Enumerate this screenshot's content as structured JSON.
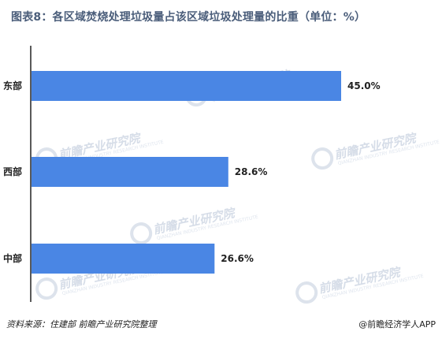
{
  "title": "图表8：各区域焚烧处理垃圾量占该区域垃圾处理量的比重（单位：%）",
  "source": "资料来源：住建部  前瞻产业研究院整理",
  "credit": "@前瞻经济学人APP",
  "watermark": {
    "text": "前瞻产业研究院",
    "subtext": "QIANZHAN INDUSTRY RESEARCH INSTITUTE"
  },
  "colors": {
    "bar": "#4a86e4",
    "axis": "#222222",
    "title": "#4a5d7a"
  },
  "chart_data": {
    "type": "bar",
    "orientation": "horizontal",
    "title": "图表8：各区域焚烧处理垃圾量占该区域垃圾处理量的比重（单位：%）",
    "categories": [
      "东部",
      "西部",
      "中部"
    ],
    "values": [
      45.0,
      28.6,
      26.6
    ],
    "value_labels": [
      "45.0%",
      "28.6%",
      "26.6%"
    ],
    "xlim": [
      0,
      55
    ],
    "grid": false,
    "legend": "none"
  }
}
